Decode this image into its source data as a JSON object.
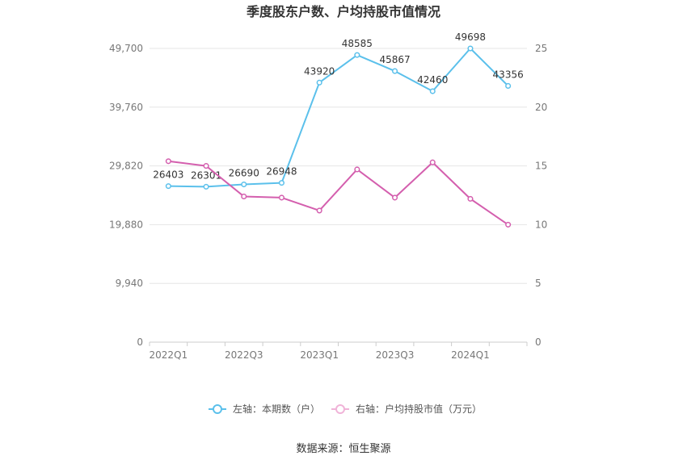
{
  "chart_data": {
    "type": "line",
    "title": "季度股东户数、户均持股市值情况",
    "x": [
      "2022Q1",
      "2022Q2",
      "2022Q3",
      "2022Q4",
      "2023Q1",
      "2023Q2",
      "2023Q3",
      "2023Q4",
      "2024Q1",
      "2024Q2"
    ],
    "x_tick_labels": [
      "2022Q1",
      "2022Q3",
      "2023Q1",
      "2023Q3",
      "2024Q1"
    ],
    "left_axis": {
      "ylim": [
        0,
        49700
      ],
      "ticks": [
        "0",
        "9,940",
        "19,880",
        "29,820",
        "39,760",
        "49,700"
      ]
    },
    "right_axis": {
      "ylim": [
        0,
        25
      ],
      "ticks": [
        "0",
        "5",
        "10",
        "15",
        "20",
        "25"
      ]
    },
    "series": [
      {
        "name": "左轴：本期数（户）",
        "axis": "left",
        "color": "#5bc0eb",
        "values": [
          26403,
          26301,
          26690,
          26948,
          43920,
          48585,
          45867,
          42460,
          49698,
          43356
        ],
        "labels": [
          "26403",
          "26301",
          "26690",
          "26948",
          "43920",
          "48585",
          "45867",
          "42460",
          "49698",
          "43356"
        ]
      },
      {
        "name": "右轴：户均持股市值（万元）",
        "axis": "right",
        "color": "#d45fae",
        "values": [
          15.4,
          15.0,
          12.4,
          12.3,
          11.2,
          14.7,
          12.3,
          15.3,
          12.2,
          10.0
        ]
      }
    ],
    "grid": true,
    "legend": "bottom-center"
  },
  "source": "数据来源：恒生聚源"
}
